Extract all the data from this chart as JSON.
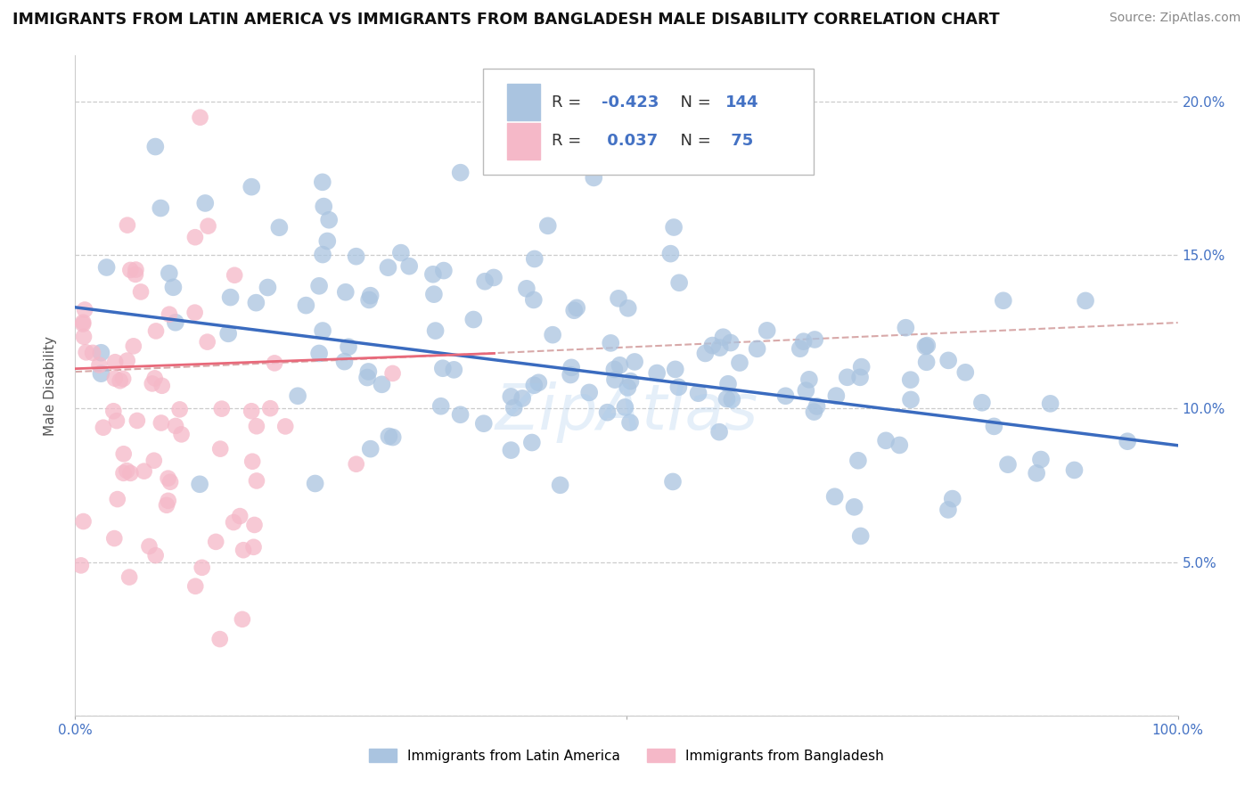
{
  "title": "IMMIGRANTS FROM LATIN AMERICA VS IMMIGRANTS FROM BANGLADESH MALE DISABILITY CORRELATION CHART",
  "source": "Source: ZipAtlas.com",
  "ylabel": "Male Disability",
  "yticks": [
    0.0,
    0.05,
    0.1,
    0.15,
    0.2
  ],
  "ytick_labels": [
    "",
    "5.0%",
    "10.0%",
    "15.0%",
    "20.0%"
  ],
  "ytick_labels_right": [
    "",
    "5.0%",
    "10.0%",
    "15.0%",
    "20.0%"
  ],
  "xlim": [
    0.0,
    1.0
  ],
  "ylim": [
    0.0,
    0.215
  ],
  "blue_color": "#aac4e0",
  "blue_line_color": "#3a6bbf",
  "pink_color": "#f5b8c8",
  "pink_line_color": "#e8697a",
  "dashed_line_color": "#d4a0a0",
  "title_fontsize": 12.5,
  "source_fontsize": 10,
  "axis_label_fontsize": 11,
  "tick_fontsize": 11,
  "legend_fontsize": 13,
  "background_color": "#ffffff",
  "blue_R": -0.423,
  "blue_N": 144,
  "pink_R": 0.037,
  "pink_N": 75,
  "blue_scatter_seed": 42,
  "pink_scatter_seed": 7,
  "watermark": "ZipAtlas",
  "legend_label_1": "Immigrants from Latin America",
  "legend_label_2": "Immigrants from Bangladesh"
}
